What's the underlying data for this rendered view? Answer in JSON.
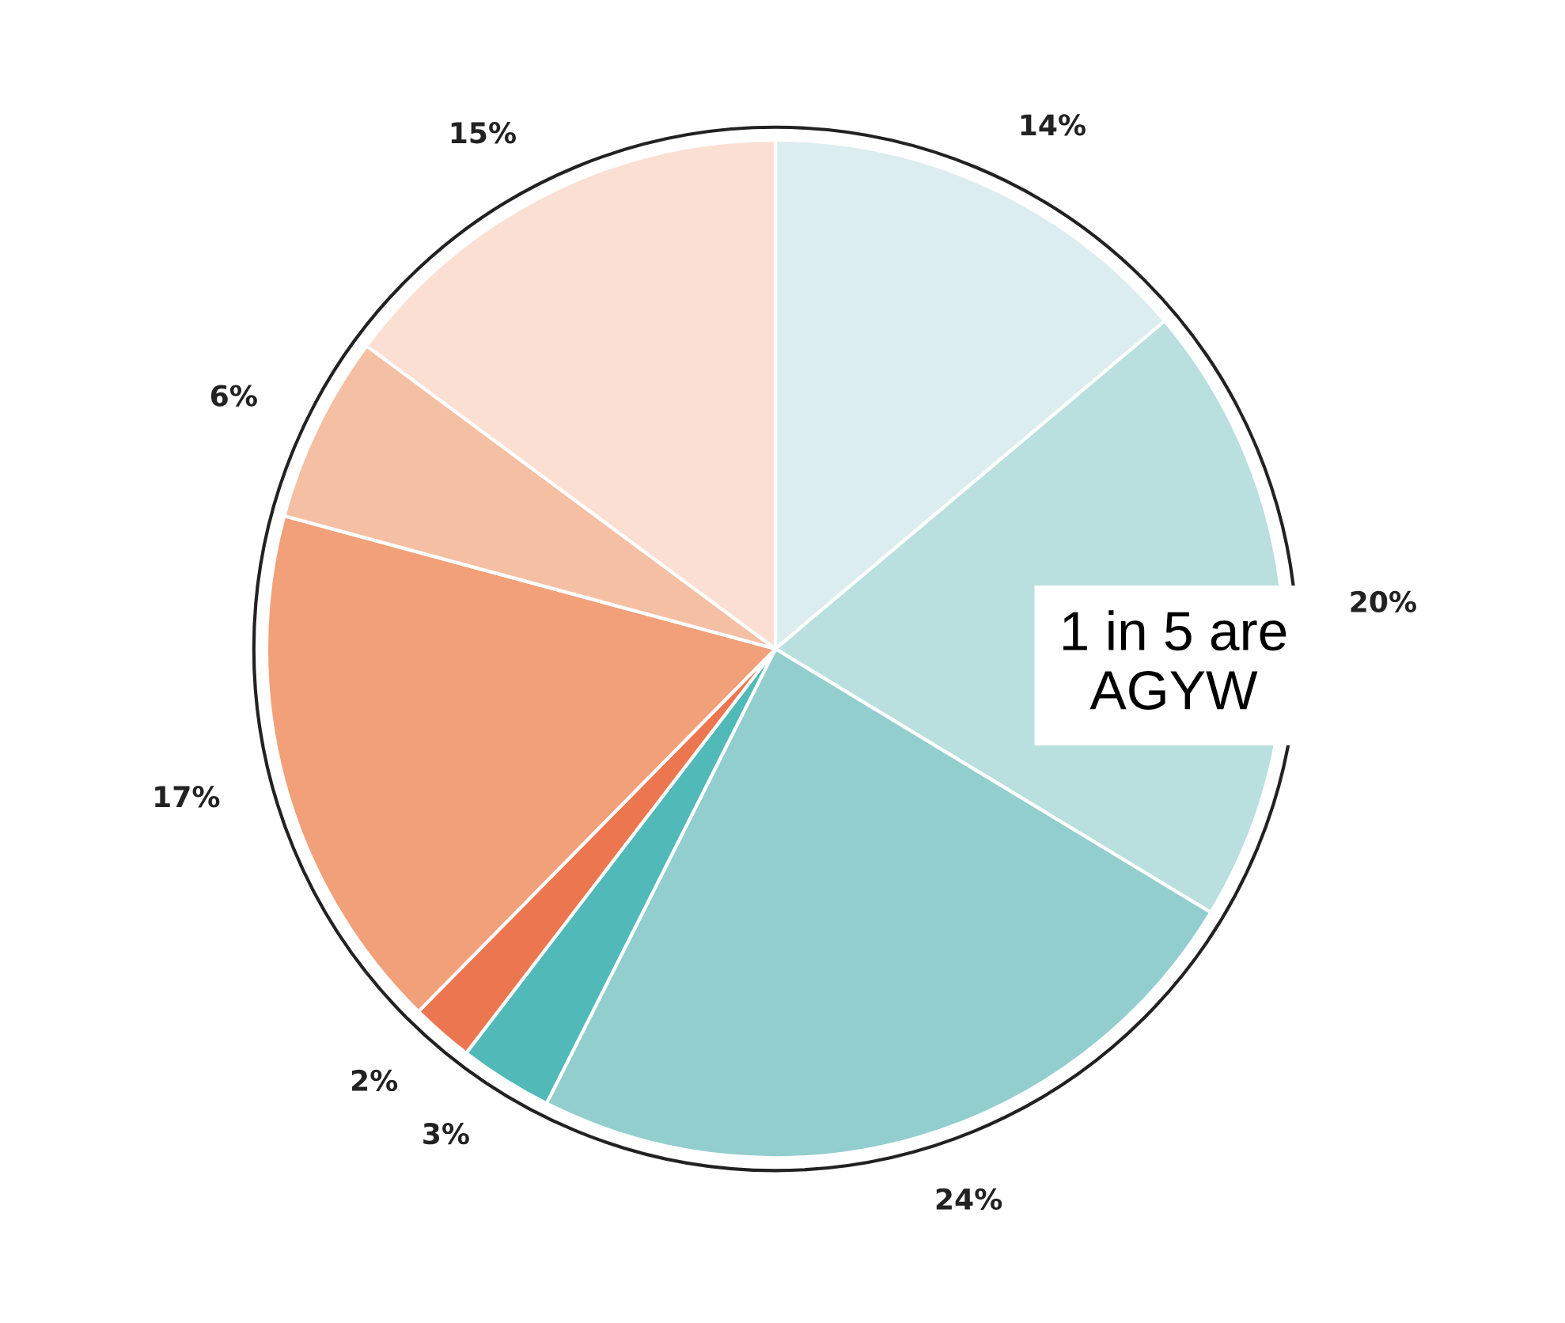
{
  "chart_data": {
    "type": "pie",
    "categories": [
      null,
      null,
      null,
      null,
      null,
      null,
      null,
      null
    ],
    "values": [
      14,
      20,
      24,
      3,
      2,
      17,
      6,
      15
    ],
    "colors": [
      "#dcedef",
      "#b9dfde",
      "#92cecd",
      "#52b9b9",
      "#ec7650",
      "#f1a07a",
      "#f5bfa4",
      "#fbdfd3"
    ],
    "value_labels": [
      "14%",
      "20%",
      "24%",
      "3%",
      "2%",
      "17%",
      "6%",
      "15%"
    ],
    "annotations": [
      "1 in 5 are\nAGYW"
    ],
    "legend": false
  }
}
